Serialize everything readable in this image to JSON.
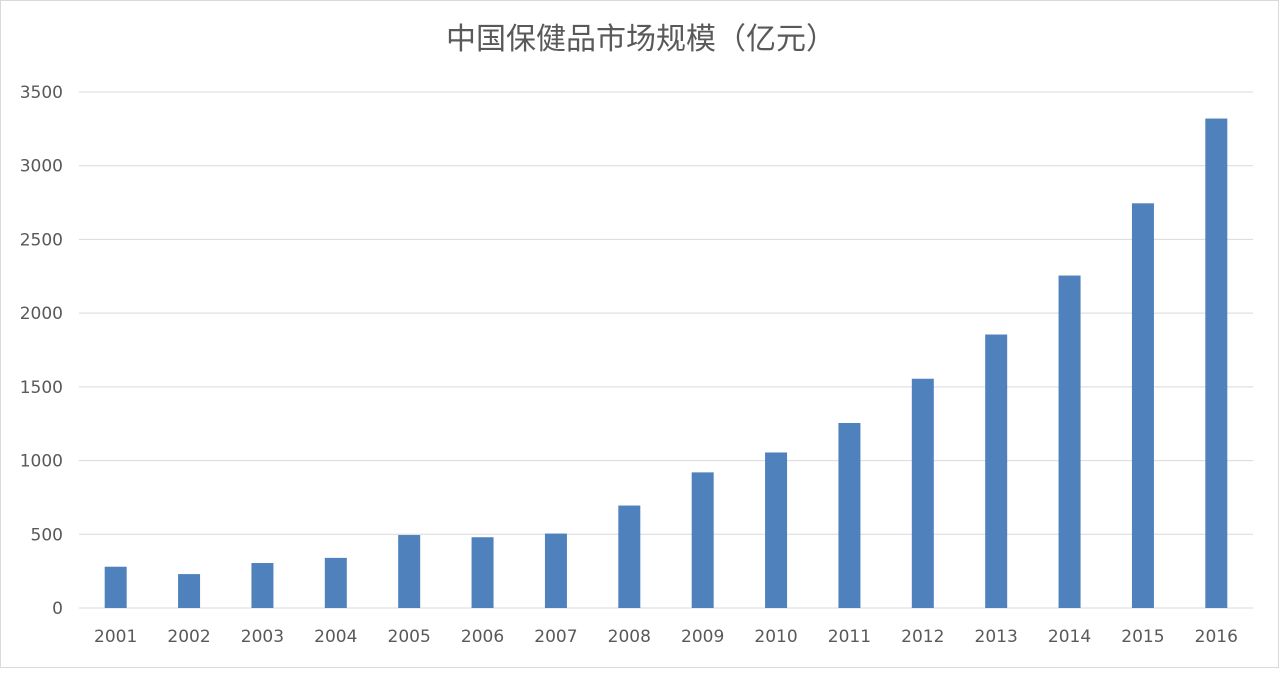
{
  "chart_data": {
    "type": "bar",
    "title": "中国保健品市场规模（亿元）",
    "xlabel": "",
    "ylabel": "",
    "categories": [
      "2001",
      "2002",
      "2003",
      "2004",
      "2005",
      "2006",
      "2007",
      "2008",
      "2009",
      "2010",
      "2011",
      "2012",
      "2013",
      "2014",
      "2015",
      "2016"
    ],
    "values": [
      280,
      230,
      305,
      340,
      495,
      480,
      505,
      695,
      920,
      1055,
      1255,
      1555,
      1855,
      2255,
      2745,
      3320
    ],
    "ylim": [
      0,
      3500
    ],
    "yticks": [
      "0",
      "500",
      "1000",
      "1500",
      "2000",
      "2500",
      "3000",
      "3500"
    ],
    "grid": true,
    "legend": "none",
    "bar_color": "#4f81bd"
  }
}
